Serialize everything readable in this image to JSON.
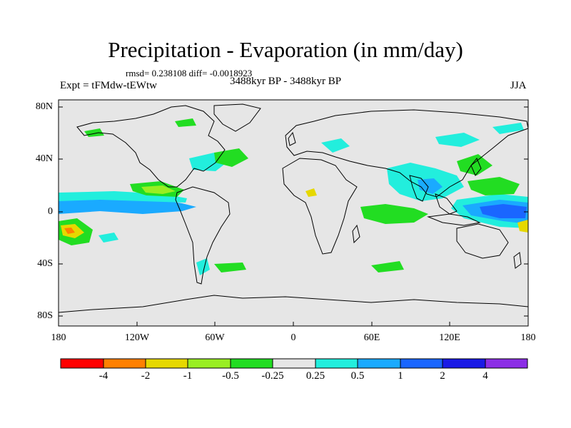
{
  "title": "Precipitation - Evaporation (in mm/day)",
  "stats": "rmsd= 0.238108 diff= -0.0018923",
  "experiment": "Expt = tFMdw-tEWtw",
  "period": "3488kyr BP - 3488kyr BP",
  "season": "JJA",
  "latitude_labels": [
    "80N",
    "40N",
    "0",
    "40S",
    "80S"
  ],
  "longitude_labels": [
    "180",
    "120W",
    "60W",
    "0",
    "60E",
    "120E",
    "180"
  ],
  "colorbar": {
    "labels": [
      "-4",
      "-2",
      "-1",
      "-0.5",
      "-0.25",
      "0.25",
      "0.5",
      "1",
      "2",
      "4"
    ],
    "colors": [
      "#ff0000",
      "#ff8000",
      "#e6d800",
      "#99ee22",
      "#22dd22",
      "#e6e6e6",
      "#22eedd",
      "#1aaaff",
      "#1a66ff",
      "#1a1ae6",
      "#8c2ee6"
    ]
  },
  "colors": {
    "background": "#e6e6e6",
    "coast": "#000000"
  }
}
